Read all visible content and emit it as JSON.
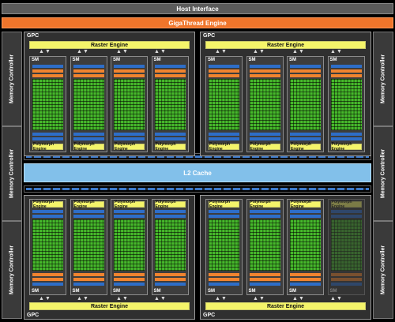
{
  "host_interface": "Host Interface",
  "gigathread_engine": "GigaThread Engine",
  "memory_controller_label": "Memory Controller",
  "l2_cache": "L2 Cache",
  "gpc_label": "GPC",
  "raster_engine": "Raster Engine",
  "sm_label": "SM",
  "polymorph_engine": "Polymorph Engine",
  "colors": {
    "host": "#5b5b5b",
    "gigathread": "#f0752b",
    "raster_polymorph": "#f4f46a",
    "cuda_cores": "#46b92b",
    "l2_cache": "#82c0ea",
    "register_file": "#2e6ec8"
  }
}
